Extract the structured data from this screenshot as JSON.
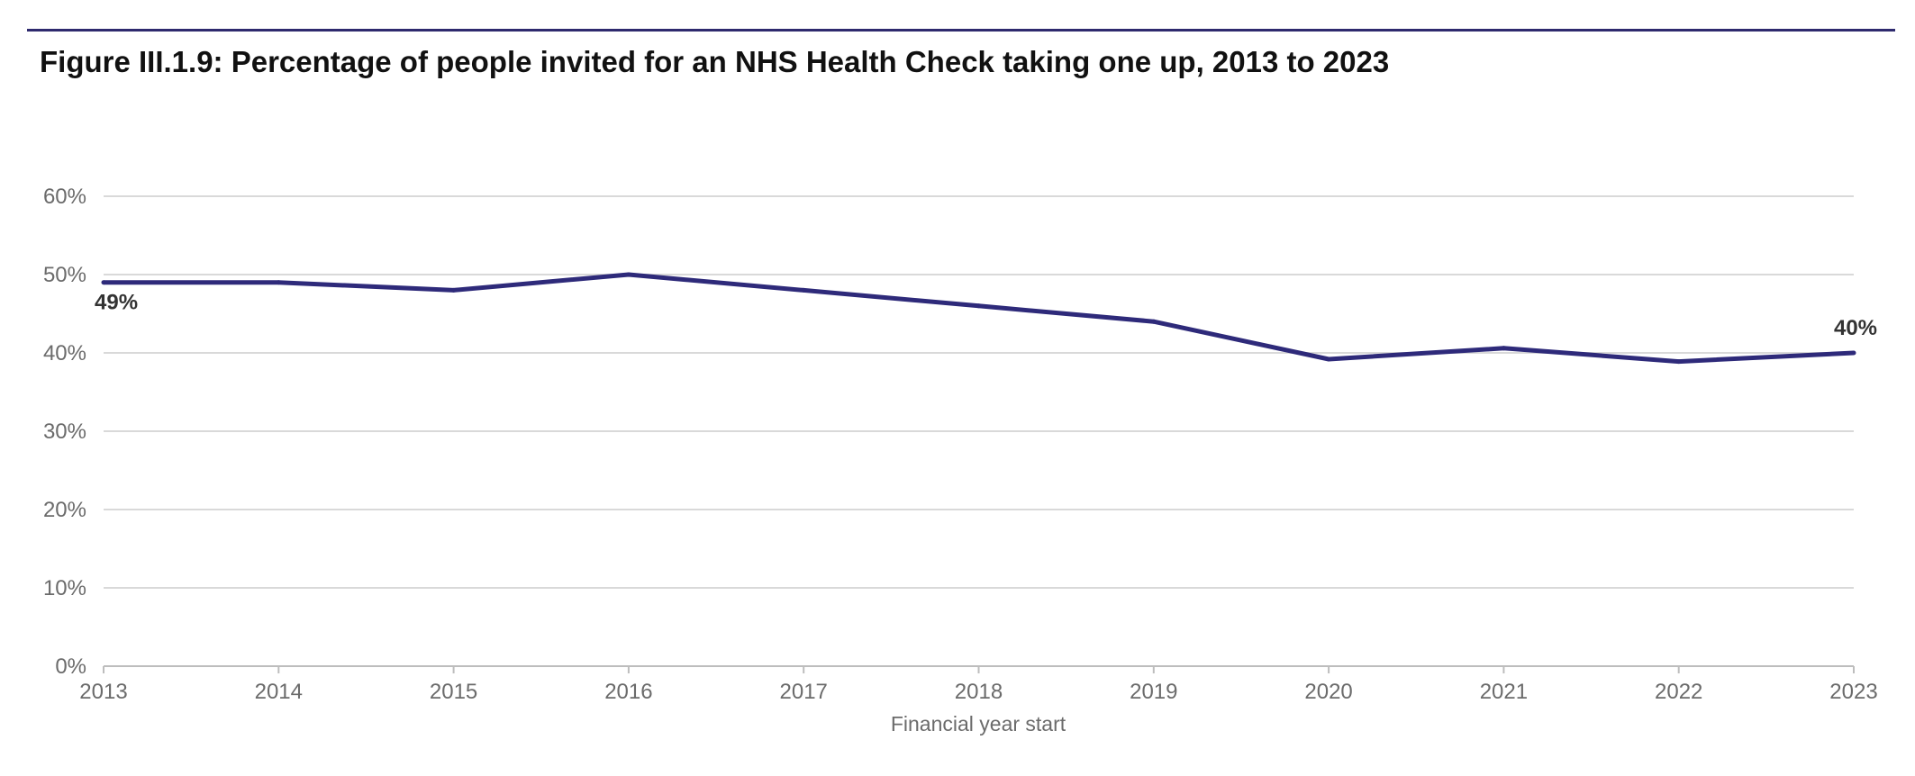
{
  "title": "Figure III.1.9: Percentage of people invited for an NHS Health Check taking one up, 2013 to 2023",
  "colors": {
    "line": "#2e2a7a",
    "rule": "#2e2a6e",
    "grid": "#d9d9d9"
  },
  "chart_data": {
    "type": "line",
    "title": "Figure III.1.9: Percentage of people invited for an NHS Health Check taking one up, 2013 to 2023",
    "xlabel": "Financial year start",
    "ylabel": "",
    "x": [
      "2013",
      "2014",
      "2015",
      "2016",
      "2017",
      "2018",
      "2019",
      "2020",
      "2021",
      "2022",
      "2023"
    ],
    "series": [
      {
        "values": [
          49,
          49,
          48,
          50,
          48,
          46,
          44,
          39.2,
          40.6,
          38.9,
          40
        ]
      }
    ],
    "ylim": [
      0,
      60
    ],
    "yticks": [
      0,
      10,
      20,
      30,
      40,
      50,
      60
    ],
    "ytick_labels": [
      "0%",
      "10%",
      "20%",
      "30%",
      "40%",
      "50%",
      "60%"
    ],
    "data_labels": [
      {
        "index": 0,
        "text": "49%"
      },
      {
        "index": 10,
        "text": "40%"
      }
    ],
    "grid": true,
    "legend": "none"
  }
}
